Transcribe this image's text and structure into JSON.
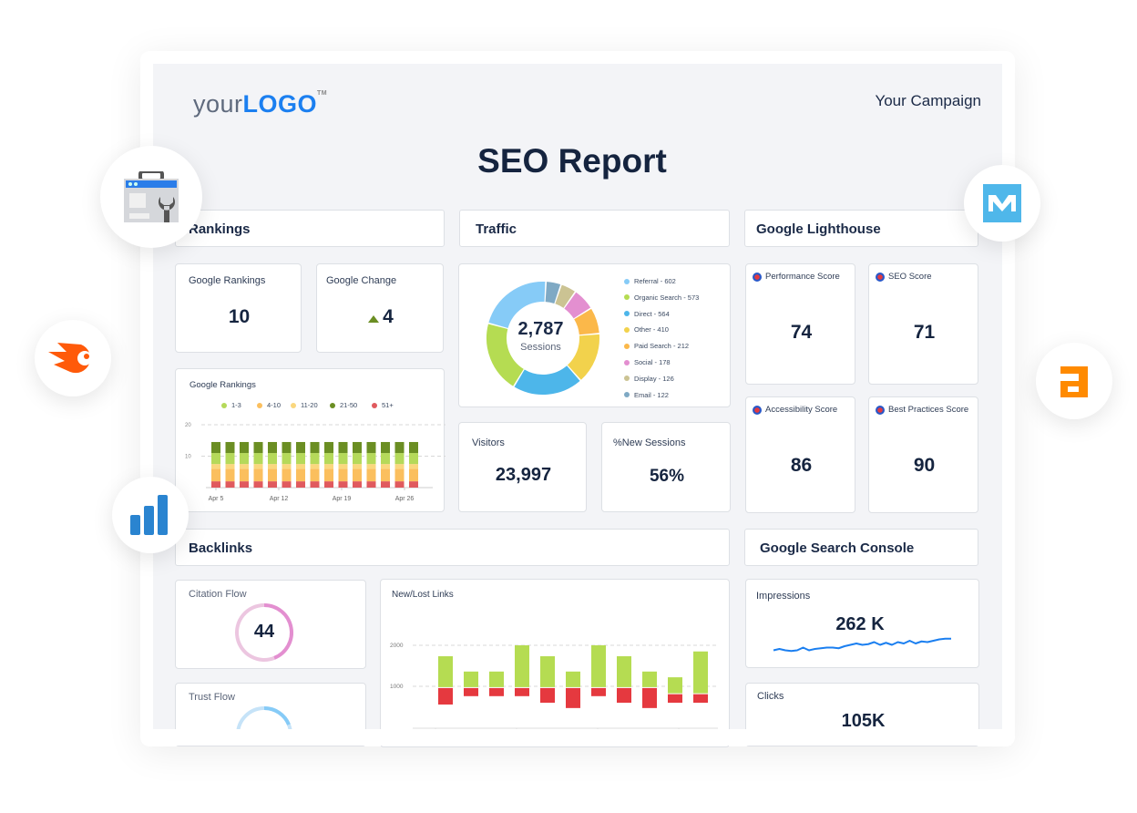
{
  "header": {
    "logo_your": "your",
    "logo_logo": "LOGO",
    "logo_tm": "TM",
    "campaign": "Your Campaign",
    "title": "SEO Report"
  },
  "sections": {
    "rankings": "Rankings",
    "traffic": "Traffic",
    "lighthouse": "Google Lighthouse",
    "backlinks": "Backlinks",
    "gsc": "Google Search Console"
  },
  "rankings": {
    "google_rankings_label": "Google Rankings",
    "google_rankings_value": "10",
    "google_change_label": "Google Change",
    "google_change_value": "4",
    "google_change_direction": "up"
  },
  "chart_data": [
    {
      "type": "bar",
      "stacked": true,
      "title": "Google Rankings",
      "categories_ticks": [
        "Apr 5",
        "Apr 12",
        "Apr 19",
        "Apr 26"
      ],
      "bar_count": 15,
      "series": [
        {
          "name": "51+",
          "color": "#e05a5e",
          "values": [
            2,
            2,
            2,
            2,
            2,
            2,
            2,
            2,
            2,
            2,
            2,
            2,
            2,
            2,
            2
          ]
        },
        {
          "name": "4-10",
          "color": "#fbbf5e",
          "values": [
            4,
            4,
            4,
            4,
            4,
            4,
            4,
            4,
            4,
            4,
            4,
            4,
            4,
            4,
            4
          ]
        },
        {
          "name": "11-20",
          "color": "#fad77e",
          "values": [
            1.5,
            1.5,
            1.5,
            1.5,
            1.5,
            1.5,
            1.5,
            1.5,
            1.5,
            1.5,
            1.5,
            1.5,
            1.5,
            1.5,
            1.5
          ]
        },
        {
          "name": "1-3",
          "color": "#b5d95a",
          "values": [
            3.5,
            3.5,
            3.5,
            3.5,
            3.5,
            3.5,
            3.5,
            3.5,
            3.5,
            3.5,
            3.5,
            3.5,
            3.5,
            3.5,
            3.5
          ]
        },
        {
          "name": "21-50",
          "color": "#6b8e23",
          "values": [
            3.5,
            3.5,
            3.5,
            3.5,
            3.5,
            3.5,
            3.5,
            3.5,
            3.5,
            3.5,
            3.5,
            3.5,
            3.5,
            3.5,
            3.5
          ]
        }
      ],
      "legend_order": [
        "1-3",
        "4-10",
        "11-20",
        "21-50",
        "51+"
      ],
      "yticks": [
        "20",
        "10"
      ],
      "ylim": [
        0,
        20
      ],
      "grid": true,
      "legend": "top"
    },
    {
      "type": "pie",
      "donut": true,
      "center_value": "2,787",
      "center_label": "Sessions",
      "slices": [
        {
          "label": "Referral - 602",
          "value": 602,
          "color": "#86cbf7"
        },
        {
          "label": "Organic Search - 573",
          "value": 573,
          "color": "#b5dc52"
        },
        {
          "label": "Direct - 564",
          "value": 564,
          "color": "#4db6ea"
        },
        {
          "label": "Other - 410",
          "value": 410,
          "color": "#f2d24c"
        },
        {
          "label": "Paid Search - 212",
          "value": 212,
          "color": "#fbb84a"
        },
        {
          "label": "Social - 178",
          "value": 178,
          "color": "#e38fd0"
        },
        {
          "label": "Display - 126",
          "value": 126,
          "color": "#cbc393"
        },
        {
          "label": "Email - 122",
          "value": 122,
          "color": "#7fa9c4"
        }
      ],
      "legend": "right"
    },
    {
      "type": "bar",
      "title": "New/Lost Links",
      "yticks": [
        "2000",
        "1000"
      ],
      "ylim": [
        0,
        2800
      ],
      "grid": true,
      "new_top": [
        1733,
        1360,
        1360,
        2000,
        1733,
        1360,
        2000,
        1733,
        1360,
        1220,
        1850
      ],
      "baseline": [
        980,
        980,
        980,
        980,
        980,
        980,
        980,
        980,
        980,
        830,
        830
      ],
      "lost_bottom": [
        556,
        760,
        760,
        760,
        600,
        470,
        760,
        600,
        470,
        600,
        600
      ],
      "new_color": "#b5dc52",
      "lost_color": "#e5393f"
    },
    {
      "type": "line",
      "title": "Impressions",
      "values": [
        3,
        4,
        3,
        2.5,
        3,
        5,
        3,
        4,
        4.5,
        5,
        5,
        4.5,
        6,
        7,
        8,
        7,
        7.5,
        9,
        7,
        8.5,
        7,
        9,
        8,
        10,
        8,
        9.5,
        9,
        10,
        11,
        11.5,
        11.5
      ],
      "color": "#1b7ff0"
    }
  ],
  "traffic": {
    "visitors_label": "Visitors",
    "visitors_value": "23,997",
    "new_sessions_label": "%New Sessions",
    "new_sessions_value": "56%"
  },
  "lighthouse": [
    {
      "label": "Performance Score",
      "value": "74",
      "score": 74,
      "color": "#f2d14a"
    },
    {
      "label": "SEO Score",
      "value": "71",
      "score": 71,
      "color": "#f2d14a"
    },
    {
      "label": "Accessibility Score",
      "value": "86",
      "score": 86,
      "color": "#b8d95c"
    },
    {
      "label": "Best Practices Score",
      "value": "90",
      "score": 90,
      "color": "#b8d95c"
    }
  ],
  "backlinks": {
    "citation_flow_label": "Citation Flow",
    "citation_flow_value": "44",
    "citation_flow": 44,
    "trust_flow_label": "Trust Flow"
  },
  "gsc": {
    "impressions_label": "Impressions",
    "impressions_value": "262 K",
    "clicks_label": "Clicks",
    "clicks_value": "105K"
  },
  "integrations": [
    "google-search-console-icon",
    "semrush-icon",
    "bar-chart-analytics-icon",
    "moz-m-icon",
    "ahrefs-a-icon"
  ]
}
